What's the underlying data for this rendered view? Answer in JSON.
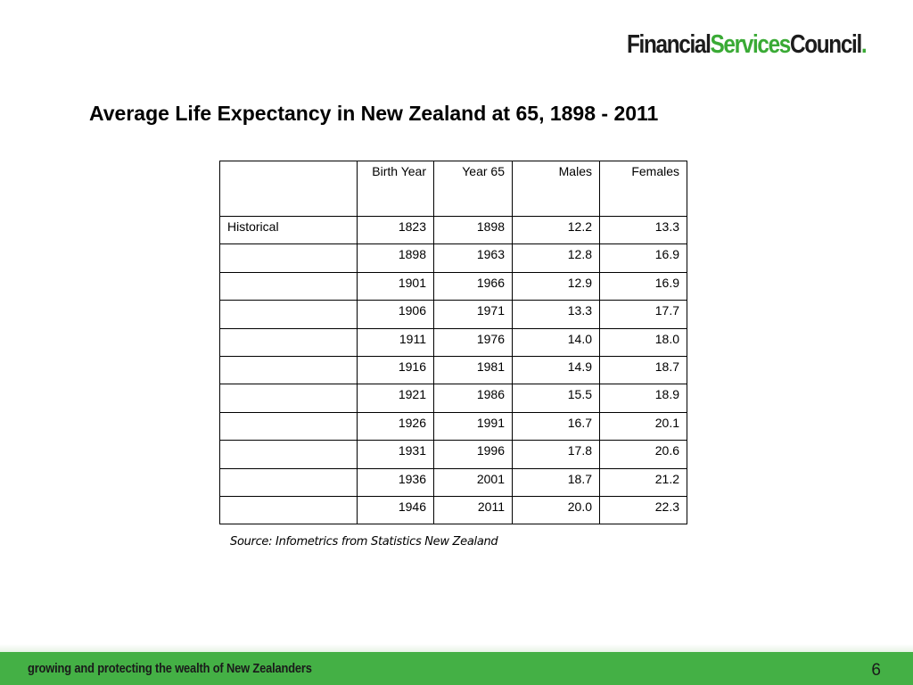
{
  "logo": {
    "part1": "Financial",
    "part2": "Services",
    "part3": "Council",
    "dot": ".",
    "colors": {
      "dark": "#1c1c1c",
      "green": "#3aaa35"
    }
  },
  "title": "Average Life Expectancy in New Zealand at 65, 1898 - 2011",
  "table": {
    "headers": [
      "",
      "Birth Year",
      "Year 65",
      "Males",
      "Females"
    ],
    "rows": [
      [
        "Historical",
        "1823",
        "1898",
        "12.2",
        "13.3"
      ],
      [
        "",
        "1898",
        "1963",
        "12.8",
        "16.9"
      ],
      [
        "",
        "1901",
        "1966",
        "12.9",
        "16.9"
      ],
      [
        "",
        "1906",
        "1971",
        "13.3",
        "17.7"
      ],
      [
        "",
        "1911",
        "1976",
        "14.0",
        "18.0"
      ],
      [
        "",
        "1916",
        "1981",
        "14.9",
        "18.7"
      ],
      [
        "",
        "1921",
        "1986",
        "15.5",
        "18.9"
      ],
      [
        "",
        "1926",
        "1991",
        "16.7",
        "20.1"
      ],
      [
        "",
        "1931",
        "1996",
        "17.8",
        "20.6"
      ],
      [
        "",
        "1936",
        "2001",
        "18.7",
        "21.2"
      ],
      [
        "",
        "1946",
        "2011",
        "20.0",
        "22.3"
      ]
    ]
  },
  "source": "Source: Infometrics from Statistics New Zealand",
  "footer": {
    "tagline": "growing and protecting the wealth of New Zealanders",
    "page_number": "6",
    "bar_color": "#44b045"
  }
}
